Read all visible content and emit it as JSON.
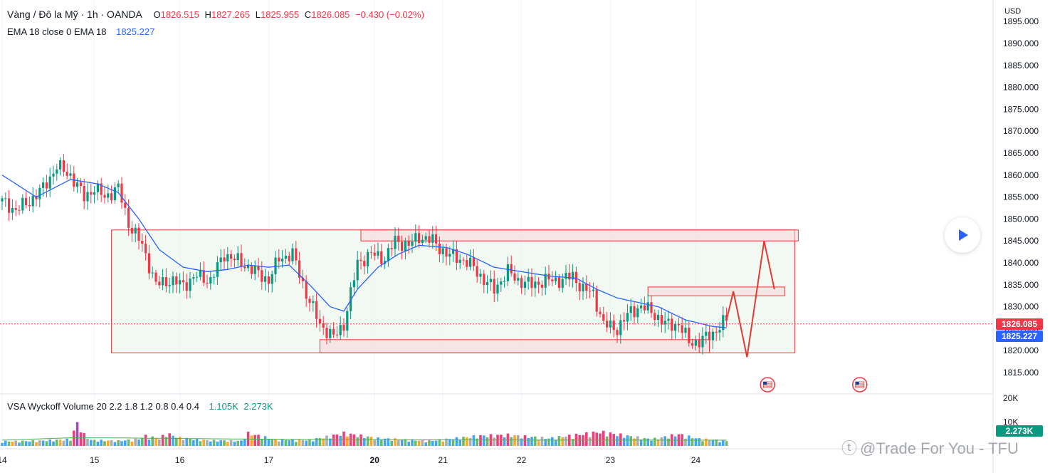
{
  "header": {
    "symbol": "Vàng / Đô la Mỹ · 1h · OANDA",
    "open_label": "O",
    "open": "1826.515",
    "high_label": "H",
    "high": "1827.265",
    "low_label": "L",
    "low": "1825.955",
    "close_label": "C",
    "close": "1826.085",
    "change": "−0.430 (−0.02%)"
  },
  "ema_legend": {
    "label": "EMA 18 close 0 EMA 18",
    "value": "1825.227"
  },
  "volume_legend": {
    "label": "VSA Wyckoff Volume 20 2.2 1.8 1.2 0.8 0.4 0.4",
    "value1": "1.105K",
    "value2": "2.273K"
  },
  "price_axis": {
    "currency": "USD",
    "current_price": "1826.085",
    "ema_price": "1825.227",
    "volume_tag": "2.273K"
  },
  "watermark": "@Trade For You - TFU",
  "colors": {
    "up": "#089981",
    "down": "#f23645",
    "ema": "#2962ff",
    "zone_fill": "#e8f5e9",
    "zone_stroke": "#e53935"
  },
  "icons": {
    "play": "play-icon",
    "event": "us-flag-icon",
    "watermark_logo": "tradingview-logo-icon"
  },
  "chart_data": [
    {
      "type": "candlestick",
      "title": "Vàng / Đô la Mỹ · 1h · OANDA",
      "ylabel": "USD",
      "ylim": [
        1814,
        1896
      ],
      "y_ticks": [
        "1815.000",
        "1820.000",
        "1825.000",
        "1830.000",
        "1835.000",
        "1840.000",
        "1845.000",
        "1850.000",
        "1855.000",
        "1860.000",
        "1865.000",
        "1870.000",
        "1875.000",
        "1880.000",
        "1885.000",
        "1890.000",
        "1895.000"
      ],
      "x_tick_labels": [
        "14",
        "15",
        "16",
        "17",
        "20",
        "21",
        "22",
        "23",
        "24"
      ],
      "series_close_path": [
        [
          0,
          1854
        ],
        [
          4,
          1852
        ],
        [
          8,
          1854
        ],
        [
          12,
          1857
        ],
        [
          16,
          1862
        ],
        [
          20,
          1860
        ],
        [
          24,
          1855
        ],
        [
          27,
          1857
        ],
        [
          30,
          1855
        ],
        [
          34,
          1857
        ],
        [
          37,
          1849
        ],
        [
          41,
          1844
        ],
        [
          45,
          1835
        ],
        [
          49,
          1836
        ],
        [
          53,
          1835
        ],
        [
          57,
          1837
        ],
        [
          61,
          1836
        ],
        [
          65,
          1842
        ],
        [
          70,
          1840
        ],
        [
          74,
          1838
        ],
        [
          78,
          1836
        ],
        [
          81,
          1841
        ],
        [
          85,
          1842
        ],
        [
          89,
          1833
        ],
        [
          93,
          1826
        ],
        [
          97,
          1823
        ],
        [
          100,
          1826
        ],
        [
          104,
          1840
        ],
        [
          108,
          1842
        ],
        [
          112,
          1841
        ],
        [
          115,
          1845
        ],
        [
          119,
          1844
        ],
        [
          122,
          1846
        ],
        [
          126,
          1845
        ],
        [
          130,
          1842
        ],
        [
          134,
          1841
        ],
        [
          138,
          1839
        ],
        [
          141,
          1836
        ],
        [
          144,
          1834
        ],
        [
          148,
          1838
        ],
        [
          151,
          1836
        ],
        [
          155,
          1835
        ],
        [
          159,
          1836
        ],
        [
          163,
          1836
        ],
        [
          167,
          1837
        ],
        [
          170,
          1834
        ],
        [
          173,
          1833
        ],
        [
          176,
          1826
        ],
        [
          180,
          1825
        ],
        [
          184,
          1829
        ],
        [
          187,
          1830
        ],
        [
          190,
          1829
        ],
        [
          194,
          1826
        ],
        [
          198,
          1826
        ],
        [
          201,
          1822
        ],
        [
          204,
          1822
        ],
        [
          208,
          1824
        ],
        [
          212,
          1827
        ]
      ],
      "ema18_path": [
        [
          0,
          1860
        ],
        [
          10,
          1855
        ],
        [
          20,
          1859
        ],
        [
          28,
          1858
        ],
        [
          34,
          1856
        ],
        [
          40,
          1850
        ],
        [
          46,
          1843
        ],
        [
          53,
          1839
        ],
        [
          60,
          1838
        ],
        [
          66,
          1838.5
        ],
        [
          72,
          1839.5
        ],
        [
          78,
          1839
        ],
        [
          84,
          1839.5
        ],
        [
          90,
          1835
        ],
        [
          96,
          1830
        ],
        [
          100,
          1829
        ],
        [
          104,
          1834
        ],
        [
          110,
          1839
        ],
        [
          116,
          1842
        ],
        [
          122,
          1844
        ],
        [
          130,
          1843.5
        ],
        [
          136,
          1842
        ],
        [
          144,
          1839
        ],
        [
          152,
          1838
        ],
        [
          160,
          1837
        ],
        [
          168,
          1836.5
        ],
        [
          174,
          1834
        ],
        [
          180,
          1832
        ],
        [
          186,
          1831
        ],
        [
          192,
          1830
        ],
        [
          200,
          1827
        ],
        [
          208,
          1825.5
        ],
        [
          212,
          1825.2
        ]
      ],
      "range_box": {
        "x_from": 32,
        "x_to": 232,
        "y_from": 1819.5,
        "y_to": 1847.5
      },
      "resistance_zone": {
        "x_from": 105,
        "x_to": 233,
        "y_from": 1845,
        "y_to": 1847.5
      },
      "support_zone": {
        "x_from": 93,
        "x_to": 207,
        "y_from": 1819.5,
        "y_to": 1822.5
      },
      "mid_zone": {
        "x_from": 189,
        "x_to": 229,
        "y_from": 1832.5,
        "y_to": 1834.5
      },
      "projection_path": [
        [
          212,
          1827
        ],
        [
          214,
          1833.5
        ],
        [
          218,
          1818.5
        ],
        [
          223,
          1845
        ],
        [
          226,
          1834
        ]
      ],
      "events": [
        {
          "x": 224,
          "label": "us-flag-icon"
        },
        {
          "x": 251,
          "label": "us-flag-icon"
        }
      ]
    },
    {
      "type": "bar",
      "title": "VSA Wyckoff Volume 20 2.2 1.8 1.2 0.8 0.4 0.4",
      "ylim": [
        0,
        20000
      ],
      "y_ticks": [
        "20K",
        "10K"
      ],
      "volume_path": [
        [
          0,
          1800
        ],
        [
          10,
          2000
        ],
        [
          20,
          2600
        ],
        [
          22,
          9000
        ],
        [
          24,
          4500
        ],
        [
          26,
          2300
        ],
        [
          34,
          2000
        ],
        [
          40,
          2700
        ],
        [
          42,
          4000
        ],
        [
          46,
          2800
        ],
        [
          48,
          5000
        ],
        [
          52,
          3200
        ],
        [
          60,
          2200
        ],
        [
          70,
          2000
        ],
        [
          72,
          5000
        ],
        [
          80,
          2500
        ],
        [
          90,
          2300
        ],
        [
          100,
          5000
        ],
        [
          110,
          3000
        ],
        [
          125,
          2000
        ],
        [
          140,
          4000
        ],
        [
          148,
          4300
        ],
        [
          160,
          3000
        ],
        [
          175,
          5500
        ],
        [
          190,
          2600
        ],
        [
          198,
          4600
        ],
        [
          204,
          2800
        ],
        [
          212,
          2000
        ]
      ],
      "ma_path": [
        [
          0,
          2400
        ],
        [
          20,
          3400
        ],
        [
          30,
          3400
        ],
        [
          60,
          3000
        ],
        [
          100,
          2600
        ],
        [
          140,
          2500
        ],
        [
          212,
          2400
        ]
      ]
    }
  ]
}
